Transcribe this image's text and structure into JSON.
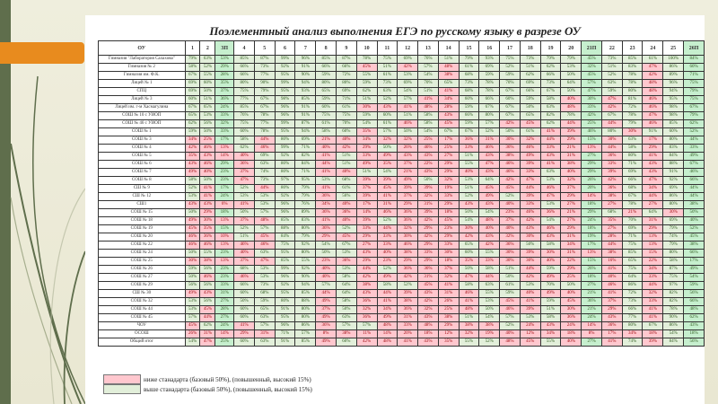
{
  "slide": {
    "title": "Поэлементный анализ выполнения ЕГЭ по русскому языку в разрезе ОУ"
  },
  "colors": {
    "below": "#ffc7ce",
    "above": "#e2efda",
    "above_p": "#c6efce",
    "sidebar": "#5f6e4c",
    "accent": "#e88b1e"
  },
  "table": {
    "header_first": "ОУ",
    "columns": [
      "1",
      "2",
      "3П",
      "4",
      "5",
      "6",
      "7",
      "8",
      "9",
      "10",
      "11",
      "12",
      "13",
      "14",
      "15",
      "16",
      "17",
      "18",
      "19",
      "20",
      "21П",
      "22",
      "23",
      "24",
      "25",
      "26П"
    ],
    "rows": [
      {
        "name": "Гимназия \"Лаборатория Салахова\"",
        "values": [
          "79%",
          "63%",
          "53%",
          "85%",
          "87%",
          "99%",
          "96%",
          "85%",
          "87%",
          "78%",
          "75%",
          "69%",
          "76%",
          "51%",
          "79%",
          "93%",
          "75%",
          "73%",
          "79%",
          "79%",
          "45%",
          "73%",
          "85%",
          "61%",
          "100%",
          "84%"
        ]
      },
      {
        "name": "Гимназия № 2",
        "values": [
          "58%",
          "52%",
          "29%",
          "66%",
          "73%",
          "92%",
          "91%",
          "66%",
          "66%",
          "45%",
          "51%",
          "42%",
          "57%",
          "48%",
          "61%",
          "69%",
          "52%",
          "51%",
          "62%",
          "53%",
          "32%",
          "51%",
          "83%",
          "47%",
          "86%",
          "60%"
        ]
      },
      {
        "name": "Гимназия им. Ф.К.",
        "values": [
          "67%",
          "55%",
          "28%",
          "66%",
          "77%",
          "95%",
          "90%",
          "59%",
          "72%",
          "55%",
          "61%",
          "53%",
          "54%",
          "38%",
          "68%",
          "59%",
          "59%",
          "62%",
          "66%",
          "50%",
          "45%",
          "52%",
          "78%",
          "42%",
          "89%",
          "71%"
        ]
      },
      {
        "name": "Лицей № 1",
        "values": [
          "69%",
          "60%",
          "35%",
          "80%",
          "90%",
          "99%",
          "94%",
          "80%",
          "80%",
          "59%",
          "73%",
          "69%",
          "70%",
          "65%",
          "73%",
          "78%",
          "70%",
          "69%",
          "73%",
          "64%",
          "57%",
          "63%",
          "78%",
          "48%",
          "96%",
          "75%"
        ]
      },
      {
        "name": "СПЦ",
        "values": [
          "69%",
          "50%",
          "37%",
          "75%",
          "79%",
          "95%",
          "93%",
          "65%",
          "69%",
          "62%",
          "63%",
          "54%",
          "51%",
          "41%",
          "68%",
          "78%",
          "67%",
          "66%",
          "67%",
          "50%",
          "47%",
          "59%",
          "80%",
          "48%",
          "94%",
          "79%"
        ]
      },
      {
        "name": "Лицей № 3",
        "values": [
          "60%",
          "51%",
          "36%",
          "77%",
          "67%",
          "98%",
          "85%",
          "59%",
          "71%",
          "51%",
          "52%",
          "57%",
          "41%",
          "34%",
          "60%",
          "66%",
          "60%",
          "59%",
          "58%",
          "40%",
          "30%",
          "47%",
          "81%",
          "46%",
          "95%",
          "75%"
        ]
      },
      {
        "name": "Лицей им. г-м Хасмагулина",
        "values": [
          "67%",
          "65%",
          "24%",
          "85%",
          "67%",
          "96%",
          "91%",
          "60%",
          "61%",
          "30%",
          "43%",
          "41%",
          "48%",
          "28%",
          "59%",
          "67%",
          "67%",
          "50%",
          "63%",
          "48%",
          "33%",
          "42%",
          "72%",
          "46%",
          "98%",
          "67%"
        ]
      },
      {
        "name": "СОШ № 10 с УИОП",
        "values": [
          "65%",
          "53%",
          "33%",
          "76%",
          "78%",
          "96%",
          "91%",
          "75%",
          "75%",
          "59%",
          "60%",
          "51%",
          "58%",
          "43%",
          "66%",
          "80%",
          "67%",
          "65%",
          "82%",
          "78%",
          "42%",
          "67%",
          "78%",
          "47%",
          "98%",
          "79%"
        ]
      },
      {
        "name": "СОШ № 46 с УИОП",
        "values": [
          "62%",
          "56%",
          "32%",
          "75%",
          "77%",
          "99%",
          "87%",
          "61%",
          "70%",
          "54%",
          "61%",
          "46%",
          "58%",
          "45%",
          "59%",
          "57%",
          "42%",
          "45%",
          "62%",
          "44%",
          "25%",
          "44%",
          "79%",
          "46%",
          "85%",
          "62%"
        ]
      },
      {
        "name": "СОШ № 1",
        "values": [
          "59%",
          "50%",
          "33%",
          "60%",
          "78%",
          "95%",
          "94%",
          "58%",
          "60%",
          "35%",
          "57%",
          "50%",
          "54%",
          "67%",
          "67%",
          "52%",
          "50%",
          "61%",
          "41%",
          "39%",
          "46%",
          "80%",
          "30%",
          "91%",
          "60%",
          "52%"
        ]
      },
      {
        "name": "СОШ № 3",
        "values": [
          "34%",
          "25%",
          "17%",
          "58%",
          "44%",
          "80%",
          "69%",
          "21%",
          "40%",
          "34%",
          "32%",
          "32%",
          "25%",
          "17%",
          "36%",
          "31%",
          "30%",
          "32%",
          "44%",
          "29%",
          "15%",
          "30%",
          "63%",
          "17%",
          "80%",
          "44%"
        ]
      },
      {
        "name": "СОШ № 4",
        "values": [
          "42%",
          "46%",
          "13%",
          "62%",
          "46%",
          "99%",
          "71%",
          "40%",
          "42%",
          "29%",
          "50%",
          "26%",
          "46%",
          "25%",
          "33%",
          "46%",
          "36%",
          "46%",
          "33%",
          "21%",
          "13%",
          "44%",
          "58%",
          "29%",
          "83%",
          "33%"
        ]
      },
      {
        "name": "СОШ № 5",
        "values": [
          "35%",
          "43%",
          "14%",
          "40%",
          "69%",
          "92%",
          "82%",
          "41%",
          "51%",
          "33%",
          "49%",
          "43%",
          "43%",
          "27%",
          "51%",
          "43%",
          "38%",
          "49%",
          "43%",
          "31%",
          "27%",
          "36%",
          "80%",
          "41%",
          "84%",
          "49%"
        ]
      },
      {
        "name": "СОШ № 6",
        "values": [
          "43%",
          "46%",
          "29%",
          "36%",
          "63%",
          "80%",
          "84%",
          "44%",
          "51%",
          "49%",
          "35%",
          "37%",
          "22%",
          "29%",
          "55%",
          "47%",
          "46%",
          "39%",
          "41%",
          "38%",
          "29%",
          "33%",
          "71%",
          "43%",
          "88%",
          "67%"
        ]
      },
      {
        "name": "СОШ № 7",
        "values": [
          "49%",
          "40%",
          "23%",
          "37%",
          "74%",
          "80%",
          "71%",
          "41%",
          "40%",
          "51%",
          "54%",
          "21%",
          "43%",
          "29%",
          "40%",
          "43%",
          "46%",
          "33%",
          "63%",
          "40%",
          "29%",
          "39%",
          "69%",
          "43%",
          "91%",
          "46%"
        ]
      },
      {
        "name": "СОШ № 8",
        "values": [
          "58%",
          "50%",
          "23%",
          "47%",
          "73%",
          "97%",
          "95%",
          "53%",
          "68%",
          "39%",
          "39%",
          "49%",
          "50%",
          "32%",
          "53%",
          "64%",
          "42%",
          "47%",
          "53%",
          "32%",
          "26%",
          "42%",
          "66%",
          "47%",
          "92%",
          "66%"
        ]
      },
      {
        "name": "СШ № 9",
        "values": [
          "52%",
          "41%",
          "17%",
          "52%",
          "44%",
          "80%",
          "79%",
          "41%",
          "61%",
          "37%",
          "45%",
          "39%",
          "39%",
          "19%",
          "51%",
          "45%",
          "45%",
          "44%",
          "46%",
          "37%",
          "20%",
          "36%",
          "68%",
          "34%",
          "69%",
          "44%"
        ]
      },
      {
        "name": "СШ № 12",
        "values": [
          "53%",
          "41%",
          "24%",
          "53%",
          "53%",
          "92%",
          "79%",
          "36%",
          "56%",
          "39%",
          "41%",
          "37%",
          "32%",
          "33%",
          "52%",
          "49%",
          "52%",
          "39%",
          "47%",
          "29%",
          "14%",
          "38%",
          "67%",
          "44%",
          "86%",
          "44%"
        ]
      },
      {
        "name": "СШ1",
        "values": [
          "43%",
          "43%",
          "6%",
          "41%",
          "53%",
          "96%",
          "76%",
          "34%",
          "40%",
          "17%",
          "31%",
          "29%",
          "31%",
          "29%",
          "43%",
          "43%",
          "40%",
          "33%",
          "53%",
          "27%",
          "18%",
          "27%",
          "78%",
          "27%",
          "80%",
          "38%"
        ]
      },
      {
        "name": "СОШ № 15",
        "values": [
          "50%",
          "29%",
          "18%",
          "50%",
          "57%",
          "96%",
          "89%",
          "36%",
          "36%",
          "14%",
          "46%",
          "36%",
          "39%",
          "18%",
          "50%",
          "54%",
          "23%",
          "46%",
          "36%",
          "21%",
          "29%",
          "68%",
          "21%",
          "64%",
          "30%",
          "50%"
        ]
      },
      {
        "name": "СОШ № 18",
        "values": [
          "49%",
          "30%",
          "13%",
          "37%",
          "48%",
          "85%",
          "83%",
          "41%",
          "40%",
          "39%",
          "52%",
          "36%",
          "42%",
          "45%",
          "54%",
          "48%",
          "37%",
          "42%",
          "54%",
          "27%",
          "24%",
          "35%",
          "70%",
          "31%",
          "69%",
          "40%"
        ]
      },
      {
        "name": "СОШ № 19",
        "values": [
          "45%",
          "35%",
          "15%",
          "52%",
          "57%",
          "88%",
          "80%",
          "36%",
          "52%",
          "33%",
          "44%",
          "32%",
          "29%",
          "23%",
          "30%",
          "40%",
          "40%",
          "43%",
          "46%",
          "29%",
          "18%",
          "27%",
          "69%",
          "29%",
          "79%",
          "52%"
        ]
      },
      {
        "name": "СОШ № 20",
        "values": [
          "46%",
          "36%",
          "10%",
          "51%",
          "45%",
          "84%",
          "79%",
          "29%",
          "45%",
          "29%",
          "33%",
          "30%",
          "42%",
          "29%",
          "42%",
          "43%",
          "32%",
          "30%",
          "43%",
          "31%",
          "19%",
          "28%",
          "71%",
          "13%",
          "74%",
          "45%"
        ]
      },
      {
        "name": "СОШ № 22",
        "values": [
          "46%",
          "46%",
          "13%",
          "46%",
          "46%",
          "75%",
          "92%",
          "54%",
          "67%",
          "27%",
          "33%",
          "46%",
          "29%",
          "33%",
          "65%",
          "42%",
          "36%",
          "50%",
          "58%",
          "34%",
          "17%",
          "44%",
          "75%",
          "13%",
          "79%",
          "38%"
        ]
      },
      {
        "name": "СОШ № 24",
        "values": [
          "50%",
          "55%",
          "23%",
          "40%",
          "63%",
          "95%",
          "80%",
          "50%",
          "53%",
          "43%",
          "40%",
          "38%",
          "33%",
          "30%",
          "60%",
          "55%",
          "30%",
          "39%",
          "30%",
          "31%",
          "13%",
          "38%",
          "85%",
          "15%",
          "80%",
          "66%"
        ]
      },
      {
        "name": "СОШ № 25",
        "values": [
          "30%",
          "38%",
          "13%",
          "37%",
          "47%",
          "85%",
          "55%",
          "23%",
          "36%",
          "29%",
          "23%",
          "29%",
          "29%",
          "18%",
          "35%",
          "33%",
          "30%",
          "30%",
          "40%",
          "22%",
          "15%",
          "16%",
          "65%",
          "22%",
          "58%",
          "17%"
        ]
      },
      {
        "name": "СОШ № 26",
        "values": [
          "59%",
          "56%",
          "23%",
          "68%",
          "53%",
          "99%",
          "92%",
          "40%",
          "53%",
          "44%",
          "52%",
          "36%",
          "36%",
          "37%",
          "50%",
          "58%",
          "51%",
          "44%",
          "59%",
          "29%",
          "26%",
          "41%",
          "75%",
          "34%",
          "87%",
          "49%"
        ]
      },
      {
        "name": "СОШ № 27",
        "values": [
          "50%",
          "46%",
          "23%",
          "46%",
          "53%",
          "96%",
          "90%",
          "40%",
          "58%",
          "42%",
          "49%",
          "42%",
          "31%",
          "32%",
          "47%",
          "44%",
          "50%",
          "42%",
          "49%",
          "25%",
          "18%",
          "40%",
          "64%",
          "33%",
          "75%",
          "54%"
        ]
      },
      {
        "name": "СОШ № 29",
        "values": [
          "56%",
          "56%",
          "33%",
          "66%",
          "73%",
          "92%",
          "94%",
          "57%",
          "64%",
          "38%",
          "58%",
          "52%",
          "45%",
          "41%",
          "58%",
          "63%",
          "61%",
          "53%",
          "70%",
          "50%",
          "27%",
          "46%",
          "86%",
          "44%",
          "97%",
          "59%"
        ]
      },
      {
        "name": "СШ № 30",
        "values": [
          "49%",
          "43%",
          "31%",
          "60%",
          "68%",
          "95%",
          "85%",
          "44%",
          "64%",
          "43%",
          "44%",
          "39%",
          "43%",
          "31%",
          "46%",
          "55%",
          "59%",
          "40%",
          "49%",
          "40%",
          "21%",
          "41%",
          "72%",
          "32%",
          "82%",
          "56%"
        ]
      },
      {
        "name": "СОШ № 32",
        "values": [
          "53%",
          "56%",
          "27%",
          "50%",
          "59%",
          "80%",
          "88%",
          "49%",
          "58%",
          "36%",
          "41%",
          "38%",
          "42%",
          "26%",
          "41%",
          "53%",
          "45%",
          "41%",
          "59%",
          "45%",
          "36%",
          "37%",
          "73%",
          "33%",
          "82%",
          "66%"
        ]
      },
      {
        "name": "СОШ № 44",
        "values": [
          "53%",
          "45%",
          "28%",
          "60%",
          "65%",
          "91%",
          "80%",
          "37%",
          "50%",
          "32%",
          "34%",
          "36%",
          "32%",
          "25%",
          "48%",
          "50%",
          "46%",
          "39%",
          "51%",
          "30%",
          "21%",
          "29%",
          "66%",
          "41%",
          "78%",
          "48%"
        ]
      },
      {
        "name": "СОШ № 45",
        "values": [
          "57%",
          "44%",
          "27%",
          "60%",
          "63%",
          "95%",
          "80%",
          "49%",
          "63%",
          "36%",
          "49%",
          "31%",
          "43%",
          "38%",
          "51%",
          "54%",
          "57%",
          "53%",
          "58%",
          "36%",
          "24%",
          "43%",
          "77%",
          "41%",
          "90%",
          "62%"
        ]
      },
      {
        "name": "ЧОУ",
        "values": [
          "45%",
          "62%",
          "24%",
          "41%",
          "57%",
          "96%",
          "86%",
          "36%",
          "57%",
          "57%",
          "48%",
          "33%",
          "48%",
          "29%",
          "38%",
          "38%",
          "52%",
          "24%",
          "43%",
          "24%",
          "14%",
          "36%",
          "80%",
          "67%",
          "86%",
          "43%"
        ]
      },
      {
        "name": "ОСОШ",
        "values": [
          "26%",
          "31%",
          "14%",
          "29%",
          "31%",
          "71%",
          "57%",
          "8%",
          "38%",
          "11%",
          "14%",
          "20%",
          "18%",
          "12%",
          "32%",
          "19%",
          "40%",
          "12%",
          "34%",
          "18%",
          "8%",
          "17%",
          "34%",
          "18%",
          "54%",
          "18%"
        ]
      },
      {
        "name": "Общий итог",
        "values": [
          "54%",
          "47%",
          "25%",
          "60%",
          "63%",
          "91%",
          "85%",
          "49%",
          "60%",
          "42%",
          "48%",
          "41%",
          "43%",
          "35%",
          "55%",
          "52%",
          "48%",
          "45%",
          "55%",
          "40%",
          "27%",
          "41%",
          "74%",
          "39%",
          "84%",
          "56%"
        ]
      }
    ]
  },
  "legend": [
    {
      "type": "below",
      "label": "ниже станадарта (базовый 50%), (повышенный, высокий 15%)"
    },
    {
      "type": "above",
      "label": "выше станадарта (базовый 50%), (повышенный, высокий 15%)"
    }
  ]
}
